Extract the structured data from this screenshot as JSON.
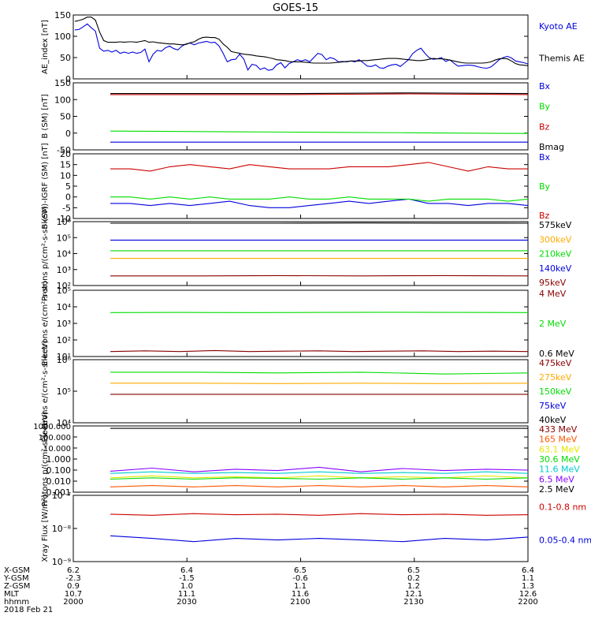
{
  "title": "GOES-15",
  "colors": {
    "black": "#000000",
    "blue": "#0000dd",
    "green": "#00dd00",
    "red": "#cc0000",
    "orange": "#ffaa00",
    "cyan": "#00cccc",
    "purple": "#8800ff",
    "darkred": "#880000",
    "yellow": "#e6e600",
    "orangered": "#ff5500"
  },
  "chart_data": [
    {
      "type": "line",
      "ylabel": "AE_index [nT]",
      "ylim": [
        0,
        150
      ],
      "yticks": [
        "150",
        "100",
        "50",
        "0"
      ],
      "series": [
        {
          "name": "Kyoto AE",
          "color": "#0000dd",
          "values": [
            115,
            116,
            122,
            129,
            120,
            112,
            72,
            65,
            67,
            63,
            67,
            60,
            63,
            60,
            63,
            60,
            62,
            70,
            40,
            58,
            67,
            65,
            73,
            77,
            71,
            68,
            77,
            82,
            84,
            80,
            84,
            86,
            88,
            85,
            86,
            77,
            60,
            40,
            45,
            46,
            58,
            47,
            21,
            34,
            32,
            22,
            26,
            20,
            22,
            33,
            38,
            26,
            36,
            40,
            45,
            42,
            45,
            40,
            50,
            60,
            57,
            45,
            50,
            47,
            40,
            41,
            40,
            42,
            40,
            45,
            38,
            30,
            29,
            33,
            26,
            25,
            30,
            33,
            34,
            29,
            37,
            45,
            59,
            67,
            72,
            60,
            50,
            46,
            47,
            50,
            41,
            45,
            37,
            30,
            31,
            32,
            32,
            31,
            28,
            26,
            25,
            28,
            36,
            45,
            50,
            53,
            49,
            42,
            40,
            38,
            35
          ]
        },
        {
          "name": "Themis AE",
          "color": "#000000",
          "values": [
            135,
            137,
            140,
            145,
            145,
            138,
            110,
            90,
            86,
            86,
            86,
            87,
            86,
            87,
            87,
            86,
            88,
            90,
            86,
            87,
            85,
            84,
            83,
            82,
            82,
            81,
            80,
            81,
            85,
            87,
            93,
            97,
            98,
            97,
            97,
            93,
            82,
            74,
            64,
            62,
            60,
            58,
            57,
            56,
            54,
            53,
            52,
            50,
            48,
            45,
            44,
            43,
            41,
            40,
            40,
            40,
            39,
            38,
            37,
            37,
            37,
            37,
            37,
            38,
            39,
            40,
            41,
            42,
            42,
            42,
            43,
            43,
            44,
            45,
            46,
            47,
            48,
            48,
            48,
            47,
            46,
            45,
            44,
            43,
            43,
            44,
            46,
            48,
            47,
            47,
            46,
            44,
            42,
            40,
            38,
            37,
            37,
            37,
            37,
            37,
            38,
            40,
            44,
            47,
            48,
            47,
            42,
            36,
            33,
            32,
            31
          ]
        }
      ]
    },
    {
      "type": "line",
      "ylabel": "B (SM) [nT]",
      "ylim": [
        -50,
        150
      ],
      "yticks": [
        "150",
        "100",
        "50",
        "0",
        "-50"
      ],
      "series": [
        {
          "name": "Bx",
          "color": "#0000dd",
          "values": [
            -27,
            -27,
            -27,
            -27,
            -27,
            -27,
            -27,
            -27
          ]
        },
        {
          "name": "By",
          "color": "#00dd00",
          "values": [
            6,
            5,
            4,
            3,
            2,
            1,
            0,
            -1
          ]
        },
        {
          "name": "Bz",
          "color": "#cc0000",
          "values": [
            115,
            115,
            115,
            115,
            116,
            117,
            116,
            115
          ]
        },
        {
          "name": "Bmag",
          "color": "#000000",
          "values": [
            118,
            118,
            118,
            118,
            119,
            120,
            119,
            118
          ]
        }
      ]
    },
    {
      "type": "line",
      "ylabel": "B (SM)-IGRF (SM) [nT]",
      "ylim": [
        -10,
        20
      ],
      "yticks": [
        "20",
        "15",
        "10",
        "5",
        "0",
        "-5",
        "-10"
      ],
      "series": [
        {
          "name": "Bx",
          "color": "#0000dd",
          "values": [
            -3,
            -3,
            -4,
            -3,
            -4,
            -3,
            -2,
            -4,
            -5,
            -5,
            -4,
            -3,
            -2,
            -3,
            -2,
            -1,
            -3,
            -3,
            -4,
            -3,
            -3,
            -4
          ]
        },
        {
          "name": "By",
          "color": "#00dd00",
          "values": [
            0,
            0,
            -1,
            0,
            -1,
            0,
            -1,
            -1,
            -1,
            0,
            -1,
            -1,
            0,
            -1,
            -1,
            -1,
            -2,
            -1,
            -1,
            -1,
            -2,
            -1
          ]
        },
        {
          "name": "Bz",
          "color": "#cc0000",
          "values": [
            13,
            13,
            12,
            14,
            15,
            14,
            13,
            15,
            14,
            13,
            13,
            13,
            14,
            14,
            14,
            15,
            16,
            14,
            12,
            14,
            13,
            13
          ]
        }
      ]
    },
    {
      "type": "line",
      "ylabel": "Protons p/(cm²-s-sr-keV)",
      "yscale": "log",
      "ylim": [
        100,
        1000000
      ],
      "yticks": [
        "10⁶",
        "10⁵",
        "10⁴",
        "10³",
        "10²"
      ],
      "series": [
        {
          "name": "575keV",
          "color": "#000000",
          "values": [
            800000,
            800000,
            800000,
            820000,
            810000,
            800000
          ]
        },
        {
          "name": "300keV",
          "color": "#ffaa00",
          "values": [
            5000,
            5000,
            5000,
            5000,
            5000,
            5000
          ]
        },
        {
          "name": "210keV",
          "color": "#00dd00",
          "values": [
            15000,
            15000,
            15000,
            15000,
            15000,
            15000
          ]
        },
        {
          "name": "140keV",
          "color": "#0000dd",
          "values": [
            70000,
            70000,
            70000,
            70000,
            70000,
            70000
          ]
        },
        {
          "name": "95keV",
          "color": "#880000",
          "values": [
            400,
            400,
            420,
            400,
            420,
            400
          ]
        }
      ]
    },
    {
      "type": "line",
      "ylabel": "Electrons e/(cm²-s-sr)",
      "yscale": "log",
      "ylim": [
        10,
        100000
      ],
      "yticks": [
        "10⁵",
        "10⁴",
        "10³",
        "10²",
        "10¹"
      ],
      "series": [
        {
          "name": "4 MeV",
          "color": "#880000",
          "values": [
            20,
            22,
            20,
            23,
            20,
            21,
            22,
            20,
            21,
            22,
            20,
            21,
            20
          ]
        },
        {
          "name": "2 MeV",
          "color": "#00dd00",
          "values": [
            4500,
            4600,
            4500,
            4600,
            4700,
            4600,
            4500
          ]
        },
        {
          "name": "0.6 MeV",
          "color": "#000000",
          "values": [
            100000,
            100000,
            100000,
            100000,
            100000,
            100000
          ]
        }
      ]
    },
    {
      "type": "line",
      "ylabel": "Electrons e/(cm²-s-sr-keV)",
      "yscale": "log",
      "ylim": [
        10000,
        1000000
      ],
      "yticks": [
        "10⁶",
        "10⁵",
        "10⁴"
      ],
      "series": [
        {
          "name": "475keV",
          "color": "#880000",
          "values": [
            80000,
            80000,
            80000,
            80000,
            80000,
            80000
          ]
        },
        {
          "name": "275keV",
          "color": "#ffaa00",
          "values": [
            180000,
            180000,
            175000,
            180000,
            175000,
            180000
          ]
        },
        {
          "name": "150keV",
          "color": "#00dd00",
          "values": [
            400000,
            400000,
            380000,
            400000,
            350000,
            380000
          ]
        },
        {
          "name": "75keV",
          "color": "#0000dd",
          "values": []
        },
        {
          "name": "40keV",
          "color": "#000000",
          "values": []
        }
      ]
    },
    {
      "type": "line",
      "ylabel": "Protons p/(cm²-s-sr-keV)",
      "yscale": "log",
      "ylim": [
        0.001,
        1000
      ],
      "yticks": [
        "1000.000",
        "100.000",
        "10.000",
        "1.000",
        "0.100",
        "0.010",
        "0.001"
      ],
      "series": [
        {
          "name": "433 MeV",
          "color": "#880000",
          "values": []
        },
        {
          "name": "165 MeV",
          "color": "#ff5500",
          "values": [
            0.003,
            0.004,
            0.003,
            0.004,
            0.003,
            0.004,
            0.003,
            0.004,
            0.003,
            0.004,
            0.003
          ]
        },
        {
          "name": "63.1 MeV",
          "color": "#e6e600",
          "values": [
            0.02,
            0.03,
            0.02,
            0.025,
            0.02,
            0.03,
            0.02,
            0.025,
            0.02,
            0.03,
            0.02
          ]
        },
        {
          "name": "30.6 MeV",
          "color": "#00dd00",
          "values": [
            0.015,
            0.02,
            0.015,
            0.02,
            0.018,
            0.015,
            0.02,
            0.015,
            0.02,
            0.015,
            0.02
          ]
        },
        {
          "name": "11.6 MeV",
          "color": "#00cccc",
          "values": [
            0.05,
            0.07,
            0.05,
            0.06,
            0.05,
            0.07,
            0.05,
            0.06,
            0.05,
            0.07,
            0.05
          ]
        },
        {
          "name": "6.5 MeV",
          "color": "#8800ff",
          "values": [
            0.08,
            0.15,
            0.07,
            0.12,
            0.09,
            0.18,
            0.07,
            0.14,
            0.09,
            0.12,
            0.1
          ]
        },
        {
          "name": "2.5 MeV",
          "color": "#000000",
          "values": [
            600,
            600,
            600,
            600,
            600,
            600
          ]
        }
      ]
    },
    {
      "type": "line",
      "ylabel": "Xray Flux [W/m²]",
      "yscale": "log",
      "ylim": [
        1e-09,
        1e-07
      ],
      "yticks": [
        "10⁻⁷",
        "10⁻⁸",
        "10⁻⁹"
      ],
      "series": [
        {
          "name": "0.1-0.8 nm",
          "color": "#cc0000",
          "values": [
            2.7e-08,
            2.5e-08,
            2.8e-08,
            2.6e-08,
            2.7e-08,
            2.5e-08,
            2.8e-08,
            2.6e-08,
            2.7e-08,
            2.5e-08,
            2.6e-08
          ]
        },
        {
          "name": "0.05-0.4 nm",
          "color": "#0000dd",
          "values": [
            6e-09,
            5e-09,
            4e-09,
            5e-09,
            4.5e-09,
            5e-09,
            4.5e-09,
            4e-09,
            5e-09,
            4.5e-09,
            5.5e-09
          ]
        }
      ]
    }
  ],
  "xaxis": {
    "rows": [
      {
        "label": "X-GSM",
        "values": [
          "6.2",
          "6.4",
          "6.5",
          "6.5",
          "6.4"
        ]
      },
      {
        "label": "Y-GSM",
        "values": [
          "-2.3",
          "-1.5",
          "-0.6",
          "0.2",
          "1.1"
        ]
      },
      {
        "label": "Z-GSM",
        "values": [
          "0.9",
          "1.0",
          "1.1",
          "1.2",
          "1.3"
        ]
      },
      {
        "label": "MLT",
        "values": [
          "10.7",
          "11.1",
          "11.6",
          "12.1",
          "12.6"
        ]
      },
      {
        "label": "hhmm",
        "values": [
          "2000",
          "2030",
          "2100",
          "2130",
          "2200"
        ]
      }
    ],
    "date": "2018 Feb 21"
  }
}
